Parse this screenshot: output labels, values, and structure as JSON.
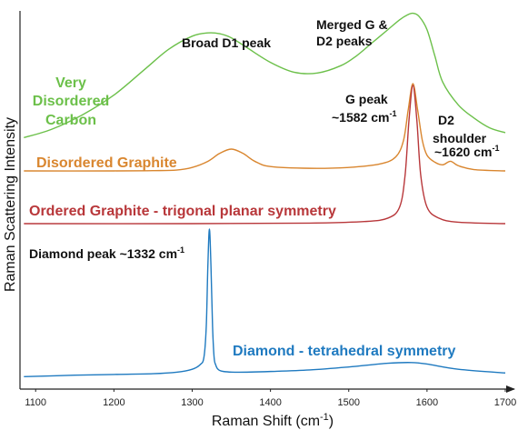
{
  "chart_data": {
    "type": "line",
    "xlabel": "Raman Shift (cm",
    "xlabel_sup": "-1",
    "xlabel_tail": ")",
    "ylabel": "Raman Scattering Intensity",
    "xlim": [
      1080,
      1700
    ],
    "x_ticks": [
      "1100",
      "1200",
      "1300",
      "1400",
      "1500",
      "1600",
      "1700"
    ],
    "x_tick_values": [
      1100,
      1200,
      1300,
      1400,
      1500,
      1600,
      1700
    ],
    "grid": false,
    "series": [
      {
        "name": "Very Disordered Carbon",
        "color": "#6cc04a",
        "x": [
          1085,
          1120,
          1160,
          1200,
          1240,
          1270,
          1300,
          1320,
          1335,
          1350,
          1370,
          1400,
          1430,
          1460,
          1490,
          1510,
          1530,
          1550,
          1565,
          1575,
          1582,
          1590,
          1600,
          1610,
          1620,
          1640,
          1660,
          1680,
          1700
        ],
        "y": [
          0.12,
          0.17,
          0.26,
          0.38,
          0.54,
          0.66,
          0.74,
          0.76,
          0.755,
          0.73,
          0.67,
          0.58,
          0.52,
          0.515,
          0.56,
          0.62,
          0.7,
          0.78,
          0.84,
          0.87,
          0.88,
          0.86,
          0.78,
          0.62,
          0.46,
          0.32,
          0.24,
          0.18,
          0.15
        ]
      },
      {
        "name": "Disordered Graphite",
        "color": "#d9862f",
        "x": [
          1085,
          1200,
          1250,
          1280,
          1300,
          1320,
          1335,
          1350,
          1365,
          1380,
          1400,
          1450,
          1500,
          1540,
          1560,
          1570,
          1576,
          1582,
          1588,
          1594,
          1600,
          1610,
          1620,
          1630,
          1640,
          1660,
          1700
        ],
        "y": [
          0,
          0,
          0.003,
          0.01,
          0.04,
          0.11,
          0.2,
          0.25,
          0.2,
          0.11,
          0.05,
          0.03,
          0.04,
          0.08,
          0.16,
          0.35,
          0.7,
          1.0,
          0.7,
          0.35,
          0.18,
          0.1,
          0.07,
          0.11,
          0.06,
          0.015,
          0
        ]
      },
      {
        "name": "Ordered Graphite - trigonal planar symmetry",
        "color": "#b8373a",
        "x": [
          1085,
          1300,
          1450,
          1520,
          1550,
          1565,
          1572,
          1577,
          1582,
          1587,
          1592,
          1600,
          1615,
          1640,
          1700
        ],
        "y": [
          0,
          0,
          0.004,
          0.015,
          0.04,
          0.12,
          0.35,
          0.75,
          1.0,
          0.75,
          0.35,
          0.12,
          0.04,
          0.01,
          0
        ]
      },
      {
        "name": "Diamond - tetrahedral symmetry",
        "color": "#1f7ac0",
        "x": [
          1085,
          1150,
          1200,
          1250,
          1280,
          1300,
          1310,
          1315,
          1318,
          1320,
          1322,
          1324,
          1326,
          1328,
          1330,
          1333,
          1340,
          1360,
          1400,
          1450,
          1500,
          1550,
          1580,
          1600,
          1640,
          1700
        ],
        "y": [
          0.01,
          0.02,
          0.025,
          0.03,
          0.04,
          0.06,
          0.09,
          0.14,
          0.35,
          0.75,
          1.0,
          0.75,
          0.35,
          0.14,
          0.09,
          0.06,
          0.045,
          0.04,
          0.045,
          0.055,
          0.075,
          0.1,
          0.105,
          0.095,
          0.06,
          0.035
        ]
      }
    ],
    "annotations": {
      "broad_d1": "Broad D1 peak",
      "merged_1": "Merged G &",
      "merged_2": "D2 peaks",
      "gpeak_1": "G peak",
      "gpeak_2": "~1582 cm",
      "gpeak_sup": "-1",
      "d2_1": "D2",
      "d2_2": "shoulder",
      "d2_3": "~1620 cm",
      "d2_sup": "-1",
      "diamond_peak": "Diamond peak ~1332 cm",
      "diamond_peak_sup": "-1",
      "vdc_1": "Very",
      "vdc_2": "Disordered",
      "vdc_3": "Carbon",
      "dg": "Disordered Graphite",
      "og": "Ordered Graphite - trigonal planar symmetry",
      "dia": "Diamond - tetrahedral symmetry"
    }
  }
}
